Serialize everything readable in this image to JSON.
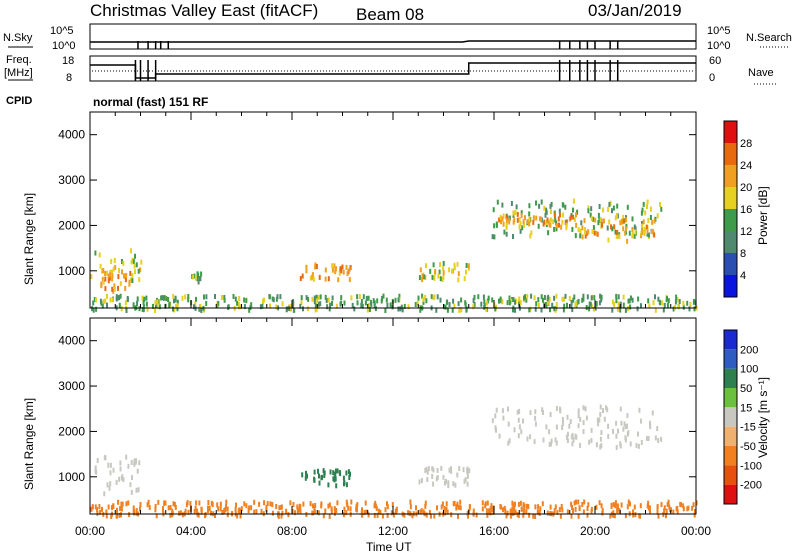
{
  "header": {
    "station": "Christmas Valley East (fitACF)",
    "beam": "Beam 08",
    "date": "03/Jan/2019"
  },
  "status_panels": {
    "nsky_label": "N.Sky",
    "nsearch_label": "N.Search",
    "noise_ticks": [
      "10^5",
      "10^0"
    ],
    "freq_label_line1": "Freq.",
    "freq_label_line2": "[MHz]",
    "freq_ticks": [
      "18",
      "8"
    ],
    "nave_label": "Nave",
    "nave_ticks": [
      "60",
      "0"
    ],
    "cpid_label": "CPID",
    "cpid_text": "normal (fast) 151 RF"
  },
  "chart_data": [
    {
      "type": "heatmap",
      "panel": "power",
      "title": "",
      "xlabel": "",
      "ylabel": "Slant Range [km]",
      "x_tick_labels": [],
      "y_ticks": [
        1000,
        2000,
        3000,
        4000
      ],
      "ylim": [
        180,
        4500
      ],
      "colorbar_label": "Power [dB]",
      "colorbar_ticks": [
        "4",
        "8",
        "12",
        "16",
        "20",
        "24",
        "28"
      ],
      "colorbar_colors": [
        "#0a14e0",
        "#2b4fb0",
        "#4f8a70",
        "#3f9a4a",
        "#e6d020",
        "#f0a020",
        "#e86a10",
        "#e01010"
      ],
      "regions": [
        {
          "t": [
            0.0,
            2.0
          ],
          "r": [
            700,
            1500
          ],
          "level": 16
        },
        {
          "t": [
            0.4,
            1.8
          ],
          "r": [
            600,
            1100
          ],
          "level": 20
        },
        {
          "t": [
            3.8,
            4.4
          ],
          "r": [
            800,
            1100
          ],
          "level": 12
        },
        {
          "t": [
            8.3,
            10.3
          ],
          "r": [
            850,
            1200
          ],
          "level": 20
        },
        {
          "t": [
            13.0,
            15.0
          ],
          "r": [
            850,
            1250
          ],
          "level": 16
        },
        {
          "t": [
            15.9,
            22.6
          ],
          "r": [
            1800,
            2600
          ],
          "level": 12
        },
        {
          "t": [
            16.1,
            19.3
          ],
          "r": [
            2000,
            2300
          ],
          "level": 20
        },
        {
          "t": [
            19.3,
            22.5
          ],
          "r": [
            1700,
            2200
          ],
          "level": 20
        },
        {
          "t": [
            0.0,
            24.0
          ],
          "r": [
            180,
            500
          ],
          "level": 12
        }
      ]
    },
    {
      "type": "heatmap",
      "panel": "velocity",
      "title": "",
      "xlabel": "Time UT",
      "ylabel": "Slant Range [km]",
      "x_tick_labels": [
        "00:00",
        "04:00",
        "08:00",
        "12:00",
        "16:00",
        "20:00",
        "00:00"
      ],
      "y_ticks": [
        1000,
        2000,
        3000,
        4000
      ],
      "ylim": [
        180,
        4500
      ],
      "colorbar_label": "Velocity [m s⁻¹]",
      "colorbar_ticks": [
        "200",
        "100",
        "50",
        "15",
        "-15",
        "-50",
        "-100",
        "-200"
      ],
      "colorbar_colors": [
        "#1a2ad0",
        "#2e5cc0",
        "#2f8050",
        "#6cc040",
        "#c8c8c0",
        "#f0b070",
        "#f08020",
        "#e85010",
        "#e01010"
      ],
      "regions": [
        {
          "t": [
            0.0,
            2.0
          ],
          "r": [
            600,
            1500
          ],
          "velocity": 0
        },
        {
          "t": [
            8.3,
            10.3
          ],
          "r": [
            850,
            1200
          ],
          "velocity": 60
        },
        {
          "t": [
            13.0,
            15.0
          ],
          "r": [
            850,
            1250
          ],
          "velocity": 0
        },
        {
          "t": [
            15.9,
            22.6
          ],
          "r": [
            1700,
            2600
          ],
          "velocity": 0
        },
        {
          "t": [
            0.0,
            24.0
          ],
          "r": [
            180,
            500
          ],
          "velocity": -60
        }
      ]
    }
  ]
}
